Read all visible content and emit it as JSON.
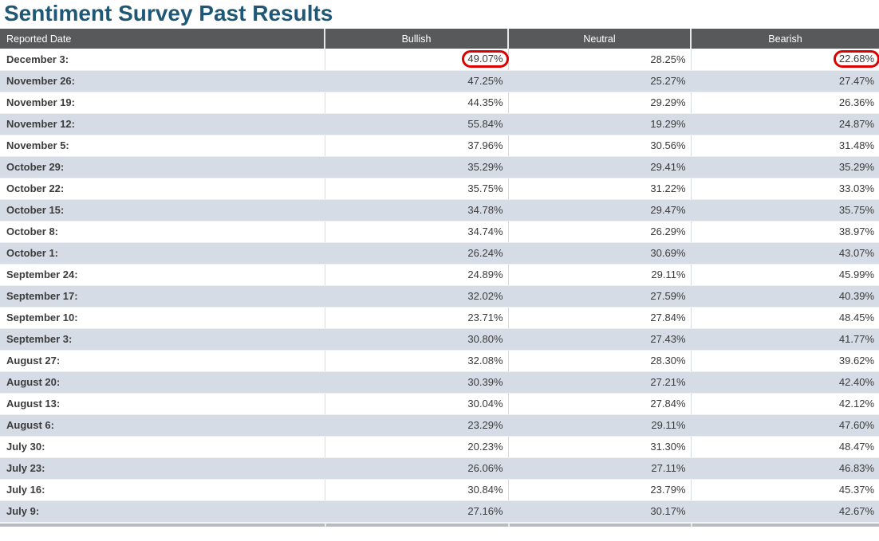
{
  "page_title": "Sentiment Survey Past Results",
  "colors": {
    "title_text": "#1f5876",
    "header_bg": "#58595b",
    "header_text": "#ffffff",
    "row_bg": "#ffffff",
    "row_alt_bg": "#d6dce6",
    "body_text": "#3a3a3a",
    "highlight_ring": "#dd0000"
  },
  "chart_data": {
    "type": "table",
    "title": "Sentiment Survey Past Results",
    "columns": [
      "Reported Date",
      "Bullish",
      "Neutral",
      "Bearish"
    ],
    "value_format": "percent_2dp",
    "categories": [
      "December 3:",
      "November 26:",
      "November 19:",
      "November 12:",
      "November 5:",
      "October 29:",
      "October 22:",
      "October 15:",
      "October 8:",
      "October 1:",
      "September 24:",
      "September 17:",
      "September 10:",
      "September 3:",
      "August 27:",
      "August 20:",
      "August 13:",
      "August 6:",
      "July 30:",
      "July 23:",
      "July 16:",
      "July 9:"
    ],
    "series": [
      {
        "name": "Bullish",
        "values": [
          49.07,
          47.25,
          44.35,
          55.84,
          37.96,
          35.29,
          35.75,
          34.78,
          34.74,
          26.24,
          24.89,
          32.02,
          23.71,
          30.8,
          32.08,
          30.39,
          30.04,
          23.29,
          20.23,
          26.06,
          30.84,
          27.16
        ]
      },
      {
        "name": "Neutral",
        "values": [
          28.25,
          25.27,
          29.29,
          19.29,
          30.56,
          29.41,
          31.22,
          29.47,
          26.29,
          30.69,
          29.11,
          27.59,
          27.84,
          27.43,
          28.3,
          27.21,
          27.84,
          29.11,
          31.3,
          27.11,
          23.79,
          30.17
        ]
      },
      {
        "name": "Bearish",
        "values": [
          22.68,
          27.47,
          26.36,
          24.87,
          31.48,
          35.29,
          33.03,
          35.75,
          38.97,
          43.07,
          45.99,
          40.39,
          48.45,
          41.77,
          39.62,
          42.4,
          42.12,
          47.6,
          48.47,
          46.83,
          45.37,
          42.67
        ]
      }
    ],
    "highlights": [
      {
        "row_index": 0,
        "column": "Bullish",
        "value": 49.07,
        "style": "red-ellipse"
      },
      {
        "row_index": 0,
        "column": "Bearish",
        "value": 22.68,
        "style": "red-ellipse"
      }
    ]
  }
}
